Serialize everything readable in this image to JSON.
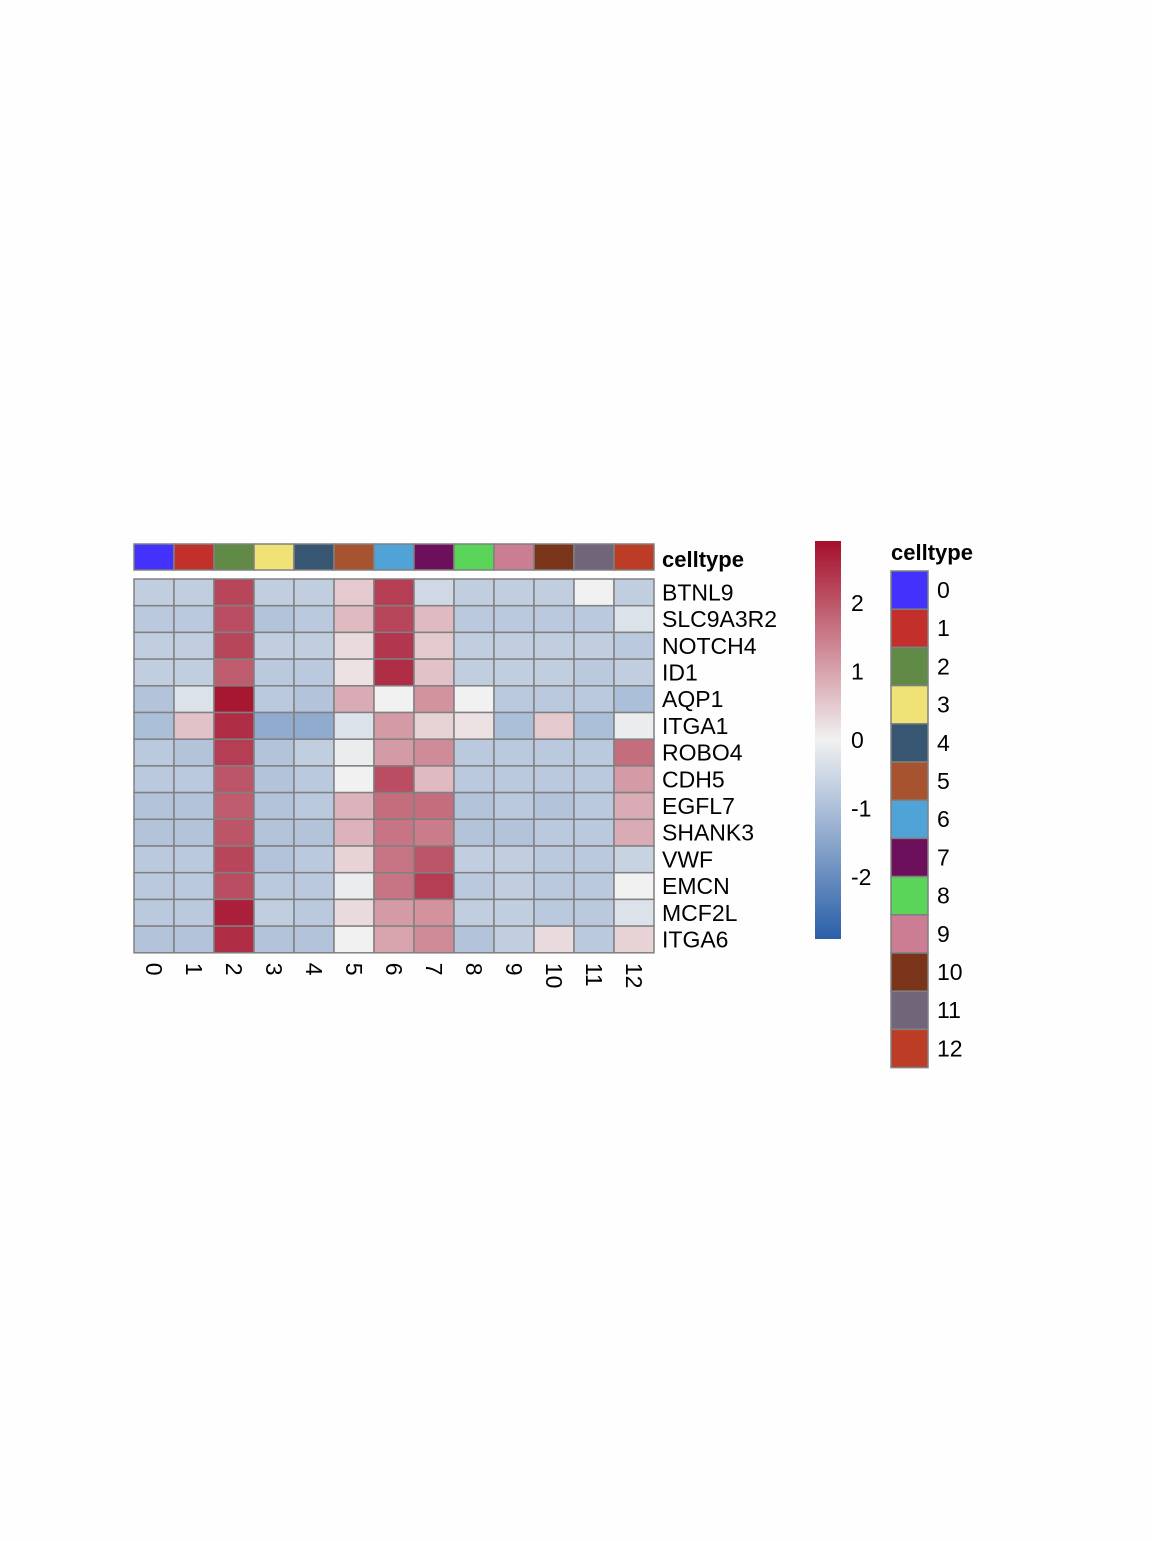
{
  "chart_data": {
    "type": "heatmap",
    "title": "",
    "columns": [
      "0",
      "1",
      "2",
      "3",
      "4",
      "5",
      "6",
      "7",
      "8",
      "9",
      "10",
      "11",
      "12"
    ],
    "rows": [
      "BTNL9",
      "SLC9A3R2",
      "NOTCH4",
      "ID1",
      "AQP1",
      "ITGA1",
      "ROBO4",
      "CDH5",
      "EGFL7",
      "SHANK3",
      "VWF",
      "EMCN",
      "MCF2L",
      "ITGA6"
    ],
    "values": [
      [
        -0.7,
        -0.7,
        2.2,
        -0.7,
        -0.7,
        0.5,
        2.3,
        -0.5,
        -0.7,
        -0.7,
        -0.7,
        0.0,
        -0.7
      ],
      [
        -0.8,
        -0.8,
        2.1,
        -0.9,
        -0.8,
        0.7,
        2.2,
        0.7,
        -0.8,
        -0.8,
        -0.8,
        -0.8,
        -0.3
      ],
      [
        -0.7,
        -0.7,
        2.2,
        -0.7,
        -0.7,
        0.3,
        2.4,
        0.5,
        -0.7,
        -0.7,
        -0.7,
        -0.7,
        -0.8
      ],
      [
        -0.7,
        -0.7,
        1.9,
        -0.8,
        -0.8,
        0.2,
        2.5,
        0.6,
        -0.7,
        -0.7,
        -0.7,
        -0.8,
        -0.7
      ],
      [
        -0.9,
        -0.3,
        2.8,
        -0.8,
        -0.9,
        0.9,
        0.0,
        1.2,
        0.0,
        -0.8,
        -0.8,
        -0.8,
        -1.0
      ],
      [
        -1.0,
        0.6,
        2.5,
        -1.4,
        -1.4,
        -0.3,
        1.1,
        0.4,
        0.2,
        -1.0,
        0.5,
        -1.0,
        -0.1
      ],
      [
        -0.8,
        -0.9,
        2.3,
        -0.9,
        -0.7,
        -0.1,
        1.1,
        1.3,
        -0.8,
        -0.8,
        -0.8,
        -0.8,
        1.7
      ],
      [
        -0.8,
        -0.8,
        2.0,
        -0.9,
        -0.8,
        0.0,
        2.1,
        0.7,
        -0.8,
        -0.8,
        -0.8,
        -0.8,
        1.1
      ],
      [
        -0.9,
        -0.9,
        1.9,
        -0.9,
        -0.8,
        0.8,
        1.7,
        1.7,
        -0.9,
        -0.8,
        -0.9,
        -0.8,
        0.9
      ],
      [
        -0.9,
        -0.9,
        2.0,
        -0.9,
        -0.9,
        0.8,
        1.6,
        1.5,
        -0.9,
        -0.9,
        -0.8,
        -0.8,
        0.9
      ],
      [
        -0.8,
        -0.8,
        2.2,
        -0.9,
        -0.8,
        0.4,
        1.6,
        2.0,
        -0.7,
        -0.7,
        -0.8,
        -0.8,
        -0.6
      ],
      [
        -0.8,
        -0.8,
        2.1,
        -0.8,
        -0.8,
        -0.1,
        1.6,
        2.3,
        -0.8,
        -0.7,
        -0.8,
        -0.8,
        0.0
      ],
      [
        -0.8,
        -0.8,
        2.7,
        -0.7,
        -0.8,
        0.3,
        1.1,
        1.2,
        -0.7,
        -0.7,
        -0.8,
        -0.8,
        -0.3
      ],
      [
        -0.9,
        -0.9,
        2.5,
        -0.9,
        -0.9,
        0.0,
        1.0,
        1.3,
        -0.9,
        -0.7,
        0.3,
        -0.8,
        0.4
      ]
    ],
    "colorbar": {
      "min": -2.9,
      "max": 2.9,
      "ticks": [
        "2",
        "1",
        "0",
        "-1",
        "-2"
      ],
      "tick_values": [
        2,
        1,
        0,
        -1,
        -2
      ],
      "low_color": "#2a5fa8",
      "mid_color": "#f1f1f1",
      "high_color": "#a50f2b"
    },
    "annotation": {
      "name": "celltype",
      "legend_title": "celltype",
      "levels": [
        "0",
        "1",
        "2",
        "3",
        "4",
        "5",
        "6",
        "7",
        "8",
        "9",
        "10",
        "11",
        "12"
      ],
      "colors": [
        "#4232fb",
        "#c3302c",
        "#608a46",
        "#efe378",
        "#375672",
        "#a8532f",
        "#4fa3d7",
        "#6d105b",
        "#5bd45a",
        "#cb7d93",
        "#7a3419",
        "#716679",
        "#bd3c25"
      ]
    }
  }
}
